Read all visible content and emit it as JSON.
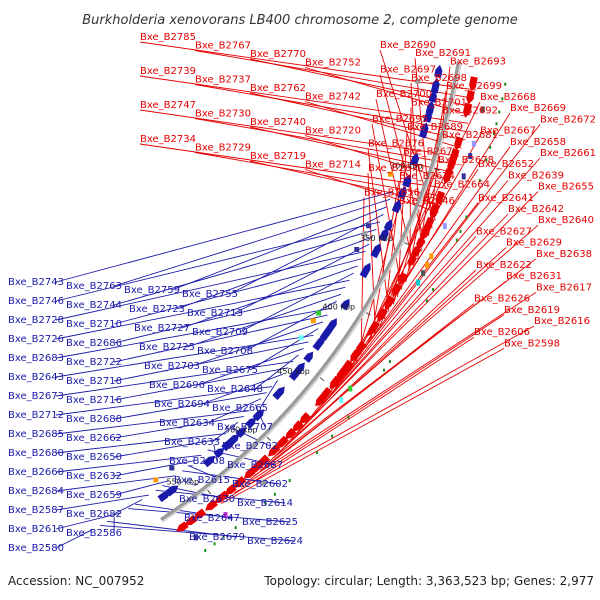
{
  "title": "Burkholderia xenovorans LB400 chromosome 2, complete genome",
  "footer": {
    "accession": "Accession: NC_007952",
    "topology": "Topology: circular; Length: 3,363,523 bp; Genes: 2,977"
  },
  "ticks": [
    "300 kbp",
    "350 kbp",
    "400 kbp",
    "450 kbp",
    "500 kbp",
    "550 kbp"
  ],
  "colors": {
    "forward": "#e60000",
    "reverse": "#1a1aaa",
    "backbone": "#8c8c8c"
  },
  "labels_forward": [
    "Bxe_B2785",
    "Bxe_B2767",
    "Bxe_B2770",
    "Bxe_B2752",
    "Bxe_B2739",
    "Bxe_B2737",
    "Bxe_B2762",
    "Bxe_B2742",
    "Bxe_B2747",
    "Bxe_B2730",
    "Bxe_B2740",
    "Bxe_B2720",
    "Bxe_B2734",
    "Bxe_B2729",
    "Bxe_B2719",
    "Bxe_B2714",
    "Bxe_B2690",
    "Bxe_B2691",
    "Bxe_B2693",
    "Bxe_B2697",
    "Bxe_B2698",
    "Bxe_B2699",
    "Bxe_B2700",
    "Bxe_B2701",
    "Bxe_B2692",
    "Bxe_B2695",
    "Bxe_B2689",
    "Bxe_B2681",
    "Bxe_B2676",
    "Bxe_B2677",
    "Bxe_B2678",
    "Bxe_B2670",
    "Bxe_B2674",
    "Bxe_B2664",
    "Bxe_B2656",
    "Bxe_B2646",
    "Bxe_B2668",
    "Bxe_B2669",
    "Bxe_B2672",
    "Bxe_B2667",
    "Bxe_B2658",
    "Bxe_B2661",
    "Bxe_B2652",
    "Bxe_B2639",
    "Bxe_B2655",
    "Bxe_B2641",
    "Bxe_B2642",
    "Bxe_B2640",
    "Bxe_B2627",
    "Bxe_B2629",
    "Bxe_B2638",
    "Bxe_B2622",
    "Bxe_B2631",
    "Bxe_B2617",
    "Bxe_B2626",
    "Bxe_B2619",
    "Bxe_B2616",
    "Bxe_B2606",
    "Bxe_B2598"
  ],
  "labels_reverse": [
    "Bxe_B2743",
    "Bxe_B2763",
    "Bxe_B2759",
    "Bxe_B2755",
    "Bxe_B2746",
    "Bxe_B2744",
    "Bxe_B2723",
    "Bxe_B2713",
    "Bxe_B2728",
    "Bxe_B2710",
    "Bxe_B2727",
    "Bxe_B2709",
    "Bxe_B2726",
    "Bxe_B2686",
    "Bxe_B2725",
    "Bxe_B2708",
    "Bxe_B2683",
    "Bxe_B2722",
    "Bxe_B2703",
    "Bxe_B2675",
    "Bxe_B2643",
    "Bxe_B2718",
    "Bxe_B2696",
    "Bxe_B2648",
    "Bxe_B2673",
    "Bxe_B2716",
    "Bxe_B2694",
    "Bxe_B2665",
    "Bxe_B2712",
    "Bxe_B2688",
    "Bxe_B2634",
    "Bxe_B2707",
    "Bxe_B2685",
    "Bxe_B2662",
    "Bxe_B2633",
    "Bxe_B2702",
    "Bxe_B2680",
    "Bxe_B2650",
    "Bxe_B2608",
    "Bxe_B2687",
    "Bxe_B2660",
    "Bxe_B2632",
    "Bxe_B2615",
    "Bxe_B2602",
    "Bxe_B2684",
    "Bxe_B2659",
    "Bxe_B2630",
    "Bxe_B2614",
    "Bxe_B2587",
    "Bxe_B2682",
    "Bxe_B2647",
    "Bxe_B2625",
    "Bxe_B2610",
    "Bxe_B2586",
    "Bxe_B2679",
    "Bxe_B2624",
    "Bxe_B2580"
  ]
}
